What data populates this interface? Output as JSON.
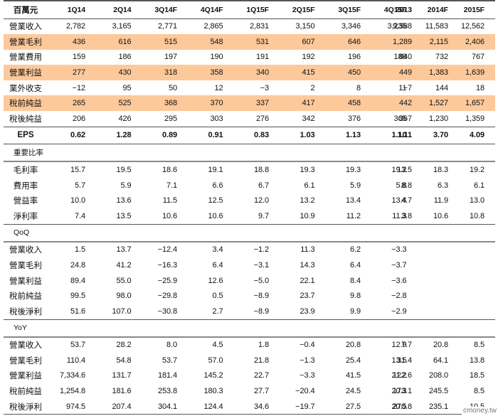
{
  "unit_label": "百萬元",
  "left_columns": [
    "1Q14",
    "2Q14",
    "3Q14F",
    "4Q14F",
    "1Q15F",
    "2Q15F",
    "3Q15F",
    "4Q15F"
  ],
  "right_columns": [
    "2013",
    "2014F",
    "2015F"
  ],
  "income_rows": [
    {
      "label": "營業收入",
      "highlight": false,
      "q": [
        "2,782",
        "3,165",
        "2,771",
        "2,865",
        "2,831",
        "3,150",
        "3,346",
        "3,235"
      ],
      "y": [
        "9,588",
        "11,583",
        "12,562"
      ]
    },
    {
      "label": "營業毛利",
      "highlight": true,
      "q": [
        "436",
        "616",
        "515",
        "548",
        "531",
        "607",
        "646",
        "622"
      ],
      "y": [
        "1,289",
        "2,115",
        "2,406"
      ]
    },
    {
      "label": "營業費用",
      "highlight": false,
      "q": [
        "159",
        "186",
        "197",
        "190",
        "191",
        "192",
        "196",
        "188"
      ],
      "y": [
        "840",
        "732",
        "767"
      ]
    },
    {
      "label": "營業利益",
      "highlight": true,
      "q": [
        "277",
        "430",
        "318",
        "358",
        "340",
        "415",
        "450",
        "434"
      ],
      "y": [
        "449",
        "1,383",
        "1,639"
      ]
    },
    {
      "label": "業外收支",
      "highlight": false,
      "q": [
        "−12",
        "95",
        "50",
        "12",
        "−3",
        "2",
        "8",
        "11"
      ],
      "y": [
        "−7",
        "144",
        "18"
      ]
    },
    {
      "label": "稅前純益",
      "highlight": true,
      "q": [
        "265",
        "525",
        "368",
        "370",
        "337",
        "417",
        "458",
        "445"
      ],
      "y": [
        "442",
        "1,527",
        "1,657"
      ]
    },
    {
      "label": "稅後純益",
      "highlight": false,
      "q": [
        "206",
        "426",
        "295",
        "303",
        "276",
        "342",
        "376",
        "365"
      ],
      "y": [
        "367",
        "1,230",
        "1,359"
      ]
    }
  ],
  "eps": {
    "label": "EPS",
    "q": [
      "0.62",
      "1.28",
      "0.89",
      "0.91",
      "0.83",
      "1.03",
      "1.13",
      "1.10"
    ],
    "y": [
      "1.11",
      "3.70",
      "4.09"
    ]
  },
  "ratios": {
    "title": "重要比率",
    "rows": [
      {
        "label": "毛利率",
        "q": [
          "15.7",
          "19.5",
          "18.6",
          "19.1",
          "18.8",
          "19.3",
          "19.3",
          "19.2"
        ],
        "y": [
          "13.5",
          "18.3",
          "19.2"
        ]
      },
      {
        "label": "費用率",
        "q": [
          "5.7",
          "5.9",
          "7.1",
          "6.6",
          "6.7",
          "6.1",
          "5.9",
          "5.8"
        ],
        "y": [
          "8.8",
          "6.3",
          "6.1"
        ]
      },
      {
        "label": "營益率",
        "q": [
          "10.0",
          "13.6",
          "11.5",
          "12.5",
          "12.0",
          "13.2",
          "13.4",
          "13.4"
        ],
        "y": [
          "4.7",
          "11.9",
          "13.0"
        ]
      },
      {
        "label": "淨利率",
        "q": [
          "7.4",
          "13.5",
          "10.6",
          "10.6",
          "9.7",
          "10.9",
          "11.2",
          "11.3"
        ],
        "y": [
          "3.8",
          "10.6",
          "10.8"
        ]
      }
    ]
  },
  "qoq": {
    "title": "QoQ",
    "rows": [
      {
        "label": "營業收入",
        "q": [
          "1.5",
          "13.7",
          "−12.4",
          "3.4",
          "−1.2",
          "11.3",
          "6.2",
          "−3.3"
        ],
        "y": [
          "",
          "",
          ""
        ]
      },
      {
        "label": "營業毛利",
        "q": [
          "24.8",
          "41.2",
          "−16.3",
          "6.4",
          "−3.1",
          "14.3",
          "6.4",
          "−3.7"
        ],
        "y": [
          "",
          "",
          ""
        ]
      },
      {
        "label": "營業利益",
        "q": [
          "89.4",
          "55.0",
          "−25.9",
          "12.6",
          "−5.0",
          "22.1",
          "8.4",
          "−3.6"
        ],
        "y": [
          "",
          "",
          ""
        ]
      },
      {
        "label": "稅前純益",
        "q": [
          "99.5",
          "98.0",
          "−29.8",
          "0.5",
          "−8.9",
          "23.7",
          "9.8",
          "−2.8"
        ],
        "y": [
          "",
          "",
          ""
        ]
      },
      {
        "label": "稅後淨利",
        "q": [
          "51.6",
          "107.0",
          "−30.8",
          "2.7",
          "−8.9",
          "23.9",
          "9.9",
          "−2.9"
        ],
        "y": [
          "",
          "",
          ""
        ]
      }
    ]
  },
  "yoy": {
    "title": "YoY",
    "rows": [
      {
        "label": "營業收入",
        "q": [
          "53.7",
          "28.2",
          "8.0",
          "4.5",
          "1.8",
          "−0.4",
          "20.8",
          "12.9"
        ],
        "y": [
          "7.7",
          "20.8",
          "8.5"
        ]
      },
      {
        "label": "營業毛利",
        "q": [
          "110.4",
          "54.8",
          "53.7",
          "57.0",
          "21.8",
          "−1.3",
          "25.4",
          "13.5"
        ],
        "y": [
          "31.4",
          "64.1",
          "13.8"
        ]
      },
      {
        "label": "營業利益",
        "q": [
          "7,334.6",
          "131.7",
          "181.4",
          "145.2",
          "22.7",
          "−3.3",
          "41.5",
          "21.2"
        ],
        "y": [
          "122.6",
          "208.0",
          "18.5"
        ]
      },
      {
        "label": "稅前純益",
        "q": [
          "1,254.8",
          "181.6",
          "253.8",
          "180.3",
          "27.7",
          "−20.4",
          "24.5",
          "20.3"
        ],
        "y": [
          "173.1",
          "245.5",
          "8.5"
        ]
      },
      {
        "label": "稅後淨利",
        "q": [
          "974.5",
          "207.4",
          "304.1",
          "124.4",
          "34.6",
          "−19.7",
          "27.5",
          "20.5"
        ],
        "y": [
          "270.8",
          "235.1",
          "10.5"
        ]
      }
    ]
  },
  "watermark": "cmoney.tw",
  "colors": {
    "highlight": "#fdc99b",
    "rule": "#555555"
  }
}
